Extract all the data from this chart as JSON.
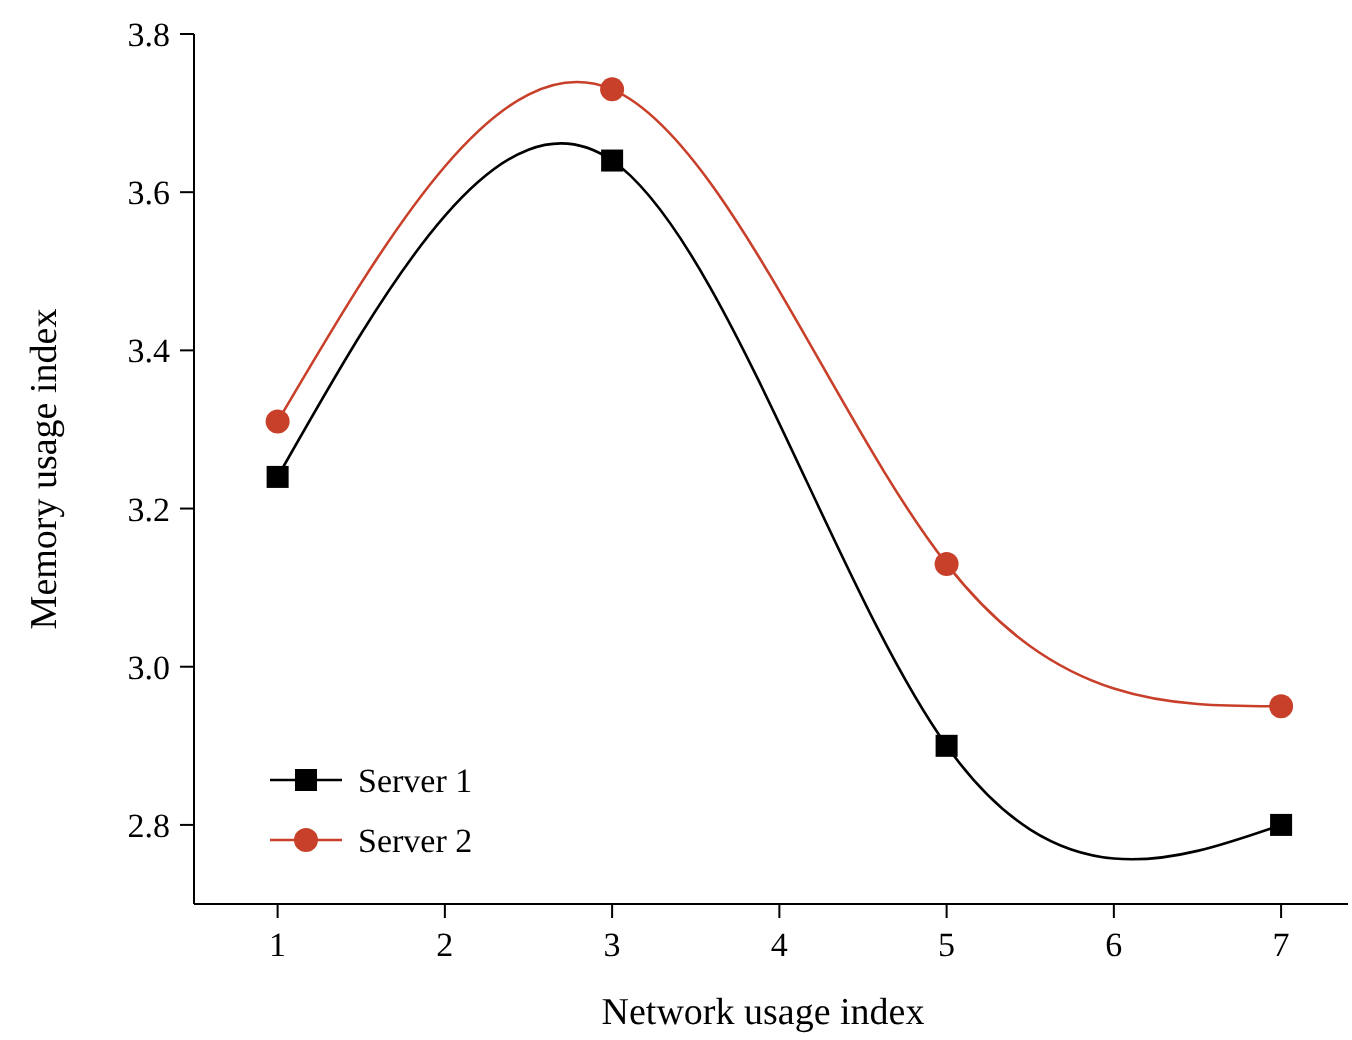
{
  "chart_data": {
    "type": "line",
    "xlabel": "Network usage index",
    "ylabel": "Memory usage index",
    "x": [
      1,
      3,
      5,
      7
    ],
    "series": [
      {
        "name": "Server 1",
        "color": "#000000",
        "marker": "square",
        "values": [
          3.24,
          3.64,
          2.9,
          2.8
        ]
      },
      {
        "name": "Server 2",
        "color": "#c8402a",
        "marker": "circle",
        "values": [
          3.31,
          3.73,
          3.13,
          2.95
        ]
      }
    ],
    "xlim": [
      0.5,
      7.4
    ],
    "xticks": [
      1,
      2,
      3,
      4,
      5,
      6,
      7
    ],
    "ylim": [
      2.7,
      3.8
    ],
    "yticks": [
      2.8,
      {
        "value": 3,
        "label": "3.0"
      },
      3.2,
      3.4,
      3.6,
      3.8
    ],
    "grid": false,
    "legend": "bottom left",
    "line_style": "solid"
  }
}
